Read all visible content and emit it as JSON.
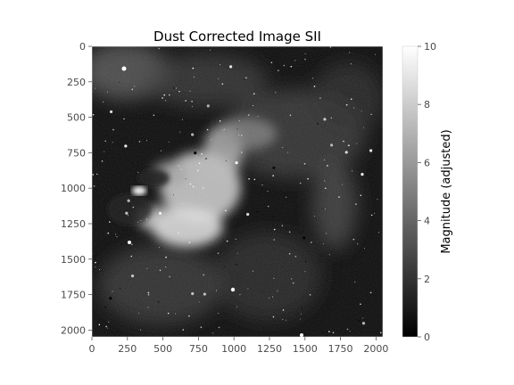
{
  "chart_data": {
    "type": "heatmap",
    "title": "Dust Corrected Image SII",
    "xlabel": "",
    "ylabel": "",
    "colormap": "gray",
    "xlim": [
      0,
      2048
    ],
    "ylim": [
      2048,
      0
    ],
    "x_ticks": [
      "0",
      "250",
      "500",
      "750",
      "1000",
      "1250",
      "1500",
      "1750",
      "2000"
    ],
    "x_tick_values": [
      0,
      250,
      500,
      750,
      1000,
      1250,
      1500,
      1750,
      2000
    ],
    "y_ticks": [
      "0",
      "250",
      "500",
      "750",
      "1000",
      "1250",
      "1500",
      "1750",
      "2000"
    ],
    "y_tick_values": [
      0,
      250,
      500,
      750,
      1000,
      1250,
      1500,
      1750,
      2000
    ],
    "colorbar": {
      "label": "Magnitude (adjusted)",
      "range": [
        0,
        10
      ],
      "ticks": [
        "0",
        "2",
        "4",
        "6",
        "8",
        "10"
      ],
      "tick_values": [
        0,
        2,
        4,
        6,
        8,
        10
      ]
    },
    "grid": false,
    "features": {
      "bright_cloud_center": [
        800,
        1100
      ],
      "bright_knot": [
        330,
        1020
      ],
      "dark_lane_center": [
        560,
        1000
      ]
    }
  }
}
